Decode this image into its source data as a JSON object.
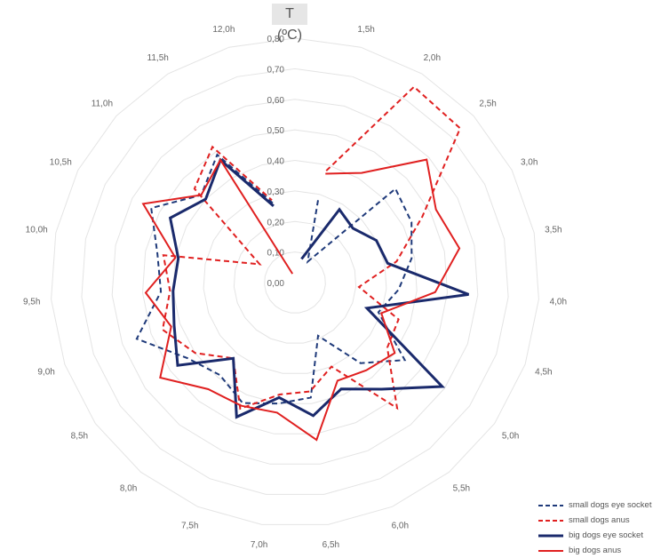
{
  "chart_data": {
    "type": "radar",
    "unit_label": "T (ºC)",
    "rlim": [
      0,
      0.8
    ],
    "r_ticks": [
      "0,00",
      "0,10",
      "0,20",
      "0,30",
      "0,40",
      "0,50",
      "0,60",
      "0,70",
      "0,80"
    ],
    "categories": [
      "1,5h",
      "2,0h",
      "2,5h",
      "3,0h",
      "3,5h",
      "4,0h",
      "4,5h",
      "5,0h",
      "5,5h",
      "6,0h",
      "6,5h",
      "7,0h",
      "7,5h",
      "8,0h",
      "8,5h",
      "9,0h",
      "9,5h",
      "10,0h",
      "10,5h",
      "11,0h",
      "11,5h",
      "12,0h"
    ],
    "series": [
      {
        "name": "small dogs eye socket",
        "color": "#1f3a7a",
        "dash": "dashed",
        "values": [
          0.28,
          0.08,
          0.45,
          0.43,
          0.39,
          0.34,
          0.29,
          0.44,
          0.34,
          0.19,
          0.38,
          0.4,
          0.43,
          0.39,
          0.43,
          0.55,
          0.44,
          0.46,
          0.53,
          0.42,
          0.49,
          0.27
        ]
      },
      {
        "name": "small dogs anus",
        "color": "#e02020",
        "dash": "dashed",
        "values": [
          0.38,
          0.75,
          0.74,
          0.47,
          0.34,
          0.21,
          0.36,
          0.37,
          0.53,
          0.3,
          0.36,
          0.37,
          0.45,
          0.32,
          0.4,
          0.46,
          0.41,
          0.44,
          0.13,
          0.45,
          0.52,
          0.28
        ]
      },
      {
        "name": "big dogs eye socket",
        "color": "#1a2a6c",
        "dash": "solid",
        "values": [
          0.08,
          0.28,
          0.26,
          0.3,
          0.31,
          0.57,
          0.25,
          0.59,
          0.45,
          0.38,
          0.44,
          0.38,
          0.48,
          0.32,
          0.47,
          0.42,
          0.4,
          0.39,
          0.46,
          0.4,
          0.47,
          0.26
        ]
      },
      {
        "name": "big dogs anus",
        "color": "#e02020",
        "dash": "solid",
        "values": [
          0.37,
          0.42,
          0.59,
          0.52,
          0.55,
          0.46,
          0.3,
          0.4,
          0.37,
          0.35,
          0.52,
          0.43,
          0.44,
          0.45,
          0.54,
          0.43,
          0.49,
          0.4,
          0.56,
          0.42,
          0.47,
          0.03
        ]
      }
    ],
    "legend_position": "bottom-right",
    "grid": true
  }
}
